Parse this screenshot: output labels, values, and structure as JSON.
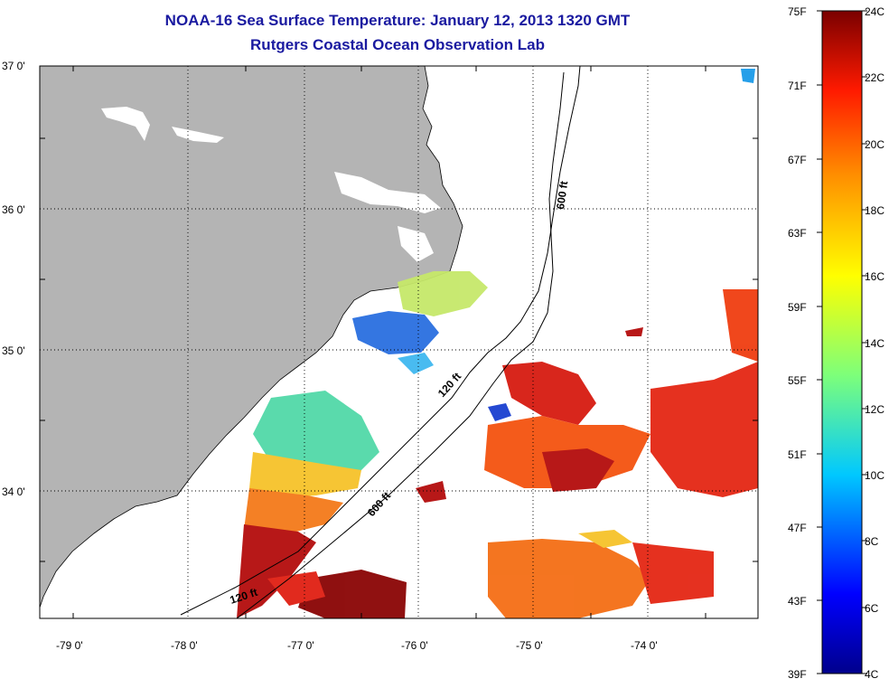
{
  "title": "NOAA-16 Sea Surface Temperature:  January 12, 2013 1320 GMT",
  "subtitle": "Rutgers Coastal Ocean Observation Lab",
  "map": {
    "lat_labels": [
      "37 0'",
      "36 0'",
      "35 0'",
      "34 0'"
    ],
    "lon_labels": [
      "-79 0'",
      "-78 0'",
      "-77 0'",
      "-76 0'",
      "-75 0'",
      "-74 0'"
    ],
    "contours": [
      "120 ft",
      "600 ft",
      "120 ft",
      "600 ft"
    ],
    "colors": {
      "land": "#b4b4b4",
      "coastline": "#000000",
      "grid": "#000000"
    }
  },
  "colorbar": {
    "fahrenheit": [
      "75F",
      "71F",
      "67F",
      "63F",
      "59F",
      "55F",
      "51F",
      "47F",
      "43F",
      "39F"
    ],
    "celsius": [
      "24C",
      "22C",
      "20C",
      "18C",
      "16C",
      "14C",
      "12C",
      "10C",
      "8C",
      "6C",
      "4C"
    ],
    "range_c": [
      4,
      24
    ],
    "range_f": [
      39,
      75
    ]
  }
}
